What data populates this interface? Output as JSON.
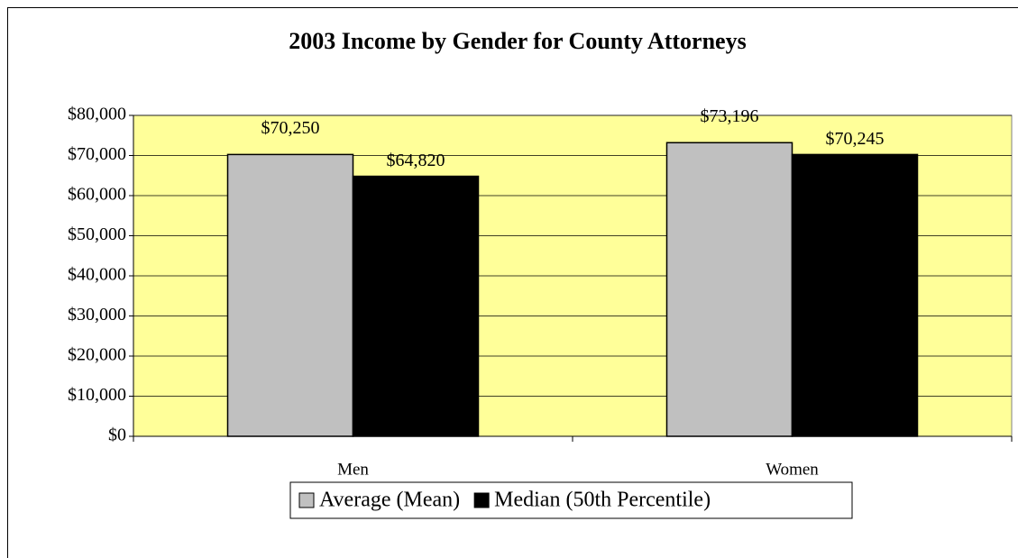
{
  "chart_data": {
    "type": "bar",
    "title": "2003 Income by Gender for County Attorneys",
    "categories": [
      "Men",
      "Women"
    ],
    "series": [
      {
        "name": "Average (Mean)",
        "color": "#c0c0c0",
        "values": [
          70250,
          73196
        ],
        "value_labels": [
          "$70,250",
          "$73,196"
        ]
      },
      {
        "name": "Median (50th Percentile)",
        "color": "#000000",
        "values": [
          64820,
          70245
        ],
        "value_labels": [
          "$64,820",
          "$70,245"
        ]
      }
    ],
    "ylim": [
      0,
      80000
    ],
    "yticks": [
      {
        "value": 0,
        "label": "$0"
      },
      {
        "value": 10000,
        "label": "$10,000"
      },
      {
        "value": 20000,
        "label": "$20,000"
      },
      {
        "value": 30000,
        "label": "$30,000"
      },
      {
        "value": 40000,
        "label": "$40,000"
      },
      {
        "value": 50000,
        "label": "$50,000"
      },
      {
        "value": 60000,
        "label": "$60,000"
      },
      {
        "value": 70000,
        "label": "$70,000"
      },
      {
        "value": 80000,
        "label": "$80,000"
      }
    ],
    "grid": true,
    "plot_background": "#ffff99",
    "legend": "bottom"
  }
}
